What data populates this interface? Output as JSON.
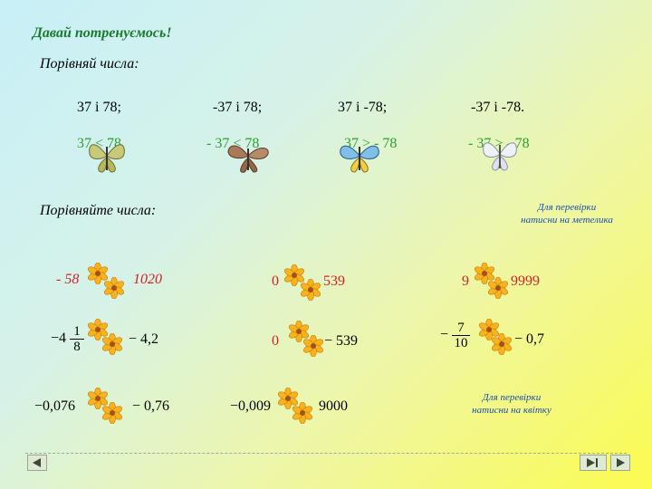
{
  "title": "Давай потренуємось!",
  "compare_prompt_1": "Порівняй числа:",
  "pairs": [
    "37 і 78;",
    "-37 і 78;",
    "37 і -78;",
    "-37 і -78."
  ],
  "answers": [
    "37 < 78",
    "- 37 < 78",
    "37 > - 78",
    "- 37 > - 78"
  ],
  "compare_prompt_2": "Порівняйте числа:",
  "hint_butterfly": [
    "Для перевірки",
    "натисни на метелика"
  ],
  "hint_flower": [
    "Для перевірки",
    "натисни на квітку"
  ],
  "row1": {
    "a_left": "- 58",
    "a_right": "1020",
    "b_left": "0",
    "b_right": "539",
    "c_left": "9",
    "c_right": "9999"
  },
  "row2": {
    "a_minus": "−4",
    "a_num": "1",
    "a_den": "8",
    "a_right": "− 4,2",
    "b_left": "0",
    "b_right": "− 539",
    "c_minus": "−",
    "c_num": "7",
    "c_den": "10",
    "c_right": "− 0,7"
  },
  "row3": {
    "a_left": "−0,076",
    "a_right": "− 0,76",
    "b_left": "−0,009",
    "b_right": "9000"
  },
  "colors": {
    "title": "#1a7a2a",
    "answer": "#2ca02c",
    "hint": "#1a4fb0",
    "red": "#d0202a"
  },
  "icons": [
    "butterfly-icon",
    "flower-icon",
    "nav-prev-icon",
    "nav-end-icon",
    "nav-next-icon"
  ]
}
